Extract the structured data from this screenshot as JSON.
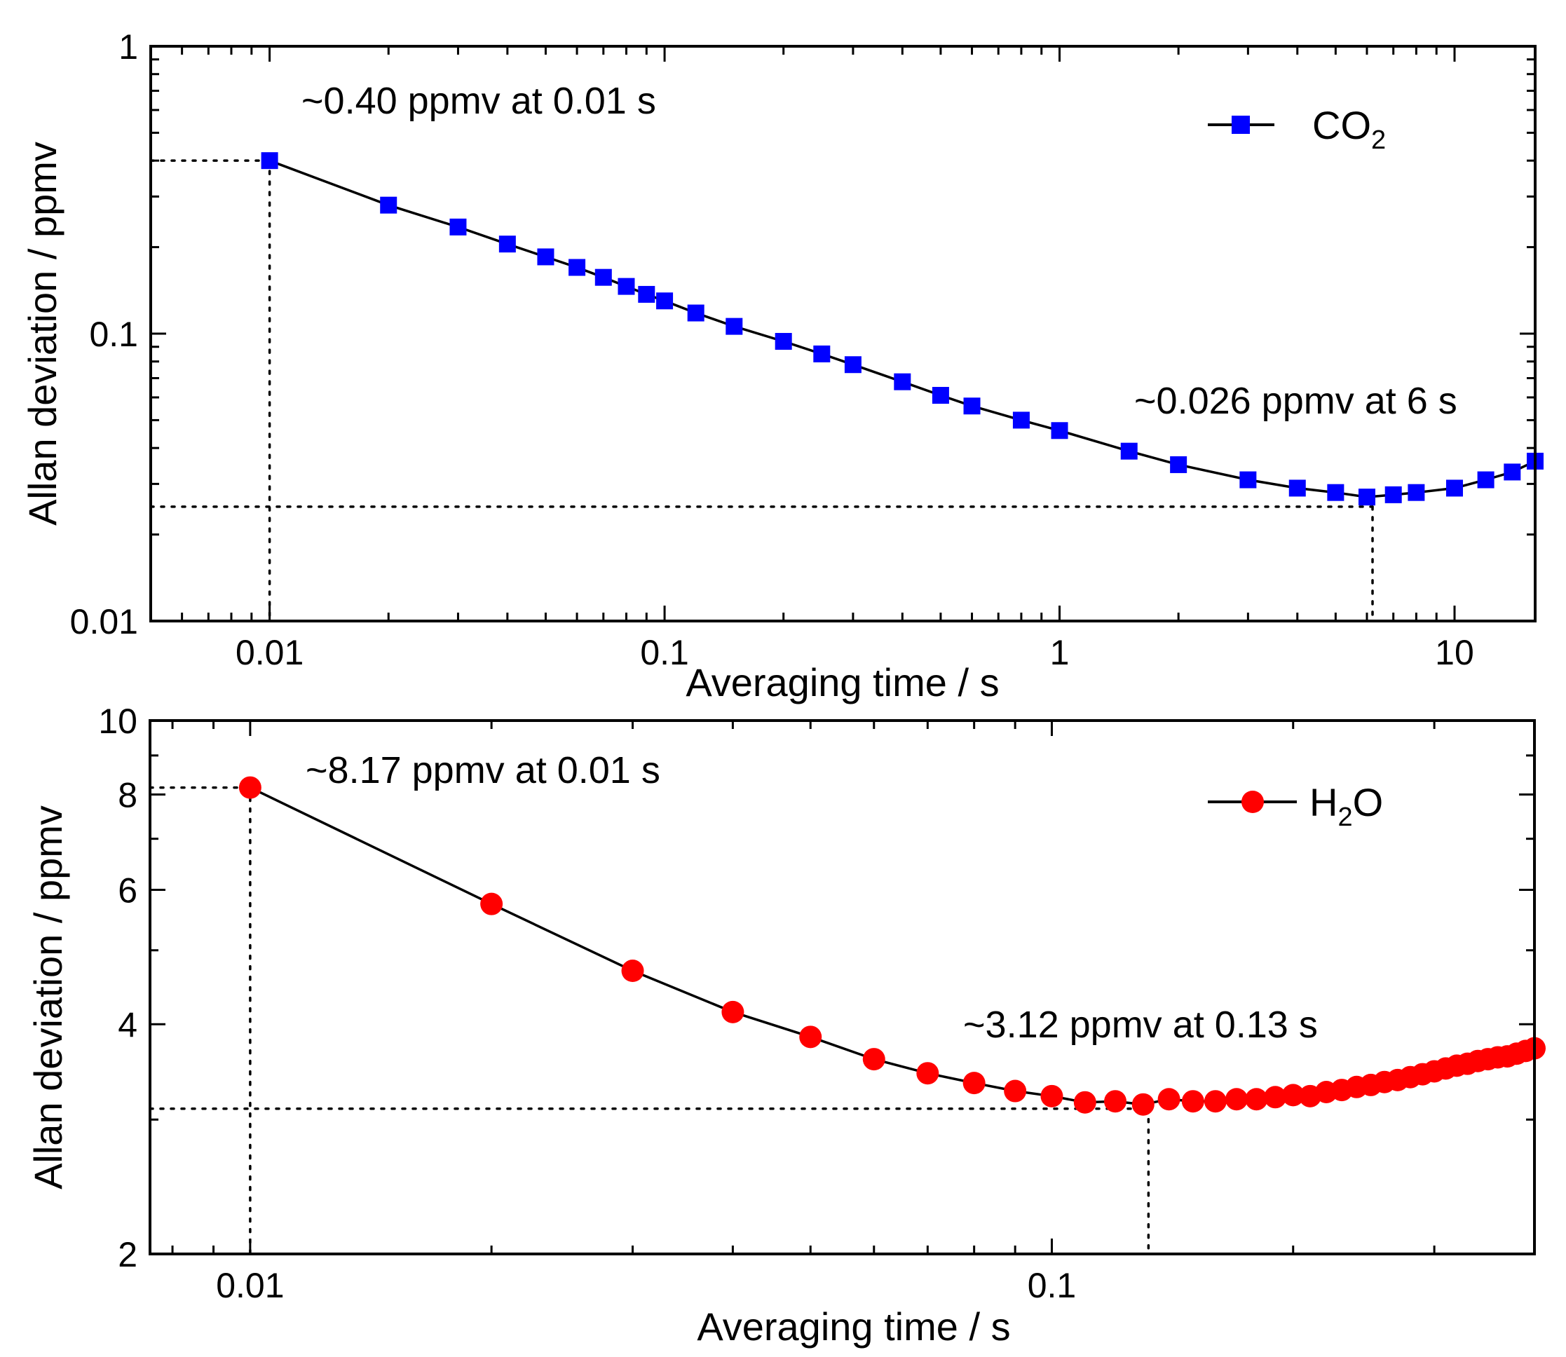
{
  "chart_data": [
    {
      "type": "line",
      "scale": "log-log",
      "xlabel": "Averaging time / s",
      "ylabel": "Allan deviation / ppmv",
      "xlim": [
        0.005,
        16
      ],
      "ylim": [
        0.01,
        1
      ],
      "xticks": [
        0.01,
        0.1,
        1,
        10
      ],
      "xtick_labels": [
        "0.01",
        "0.1",
        "1",
        "10"
      ],
      "yticks": [
        0.01,
        0.1,
        1
      ],
      "ytick_labels": [
        "0.01",
        "0.1",
        "1"
      ],
      "grid": false,
      "legend_position": "top-right",
      "series": [
        {
          "name": "CO",
          "name_subscript": "2",
          "marker": "square",
          "color": "#0000ff",
          "x": [
            0.01,
            0.02,
            0.03,
            0.04,
            0.05,
            0.06,
            0.07,
            0.08,
            0.09,
            0.1,
            0.12,
            0.15,
            0.2,
            0.25,
            0.3,
            0.4,
            0.5,
            0.6,
            0.8,
            1,
            1.5,
            2,
            3,
            4,
            5,
            6,
            7,
            8,
            10,
            12,
            14,
            16
          ],
          "y": [
            0.4,
            0.28,
            0.235,
            0.205,
            0.185,
            0.17,
            0.157,
            0.146,
            0.137,
            0.13,
            0.118,
            0.106,
            0.094,
            0.085,
            0.078,
            0.068,
            0.061,
            0.056,
            0.05,
            0.046,
            0.039,
            0.035,
            0.031,
            0.029,
            0.028,
            0.027,
            0.0275,
            0.028,
            0.029,
            0.031,
            0.033,
            0.036
          ]
        }
      ],
      "annotations": [
        {
          "text": "~0.40 ppmv at 0.01 s",
          "x": 0.01,
          "y": 0.4
        },
        {
          "text": "~0.026 ppmv at 6 s",
          "x": 6,
          "y": 0.026
        }
      ],
      "guides": [
        {
          "x": 0.01,
          "y": 0.4
        },
        {
          "x": 6.2,
          "y": 0.025
        }
      ]
    },
    {
      "type": "line",
      "scale": "log-log",
      "xlabel": "Averaging time / s",
      "ylabel": "Allan deviation / ppmv",
      "xlim": [
        0.0075,
        0.4
      ],
      "ylim": [
        2,
        10
      ],
      "xticks": [
        0.01,
        0.1
      ],
      "xtick_labels": [
        "0.01",
        "0.1"
      ],
      "yticks": [
        2,
        4,
        6,
        8,
        10
      ],
      "ytick_labels": [
        "2",
        "4",
        "6",
        "8",
        "10"
      ],
      "grid": false,
      "legend_position": "top-right",
      "series": [
        {
          "name": "H",
          "name_subscript": "2",
          "name_suffix": "O",
          "marker": "circle",
          "color": "#ff0000",
          "x": [
            0.01,
            0.02,
            0.03,
            0.04,
            0.05,
            0.06,
            0.07,
            0.08,
            0.09,
            0.1,
            0.11,
            0.12,
            0.13,
            0.14,
            0.15,
            0.16,
            0.17,
            0.18,
            0.19,
            0.2,
            0.21,
            0.22,
            0.23,
            0.24,
            0.25,
            0.26,
            0.27,
            0.28,
            0.29,
            0.3,
            0.31,
            0.32,
            0.33,
            0.34,
            0.35,
            0.36,
            0.37,
            0.38,
            0.39,
            0.4
          ],
          "y": [
            8.17,
            5.75,
            4.7,
            4.15,
            3.85,
            3.6,
            3.45,
            3.35,
            3.27,
            3.22,
            3.16,
            3.17,
            3.14,
            3.19,
            3.17,
            3.17,
            3.19,
            3.19,
            3.21,
            3.23,
            3.22,
            3.26,
            3.28,
            3.31,
            3.33,
            3.36,
            3.38,
            3.41,
            3.44,
            3.47,
            3.5,
            3.53,
            3.55,
            3.58,
            3.6,
            3.62,
            3.63,
            3.66,
            3.69,
            3.72
          ]
        }
      ],
      "annotations": [
        {
          "text": "~8.17 ppmv at 0.01 s",
          "x": 0.01,
          "y": 8.17
        },
        {
          "text": "~3.12 ppmv at 0.13 s",
          "x": 0.13,
          "y": 3.12
        }
      ],
      "guides": [
        {
          "x": 0.01,
          "y": 8.17
        },
        {
          "x": 0.132,
          "y": 3.1
        }
      ]
    }
  ]
}
